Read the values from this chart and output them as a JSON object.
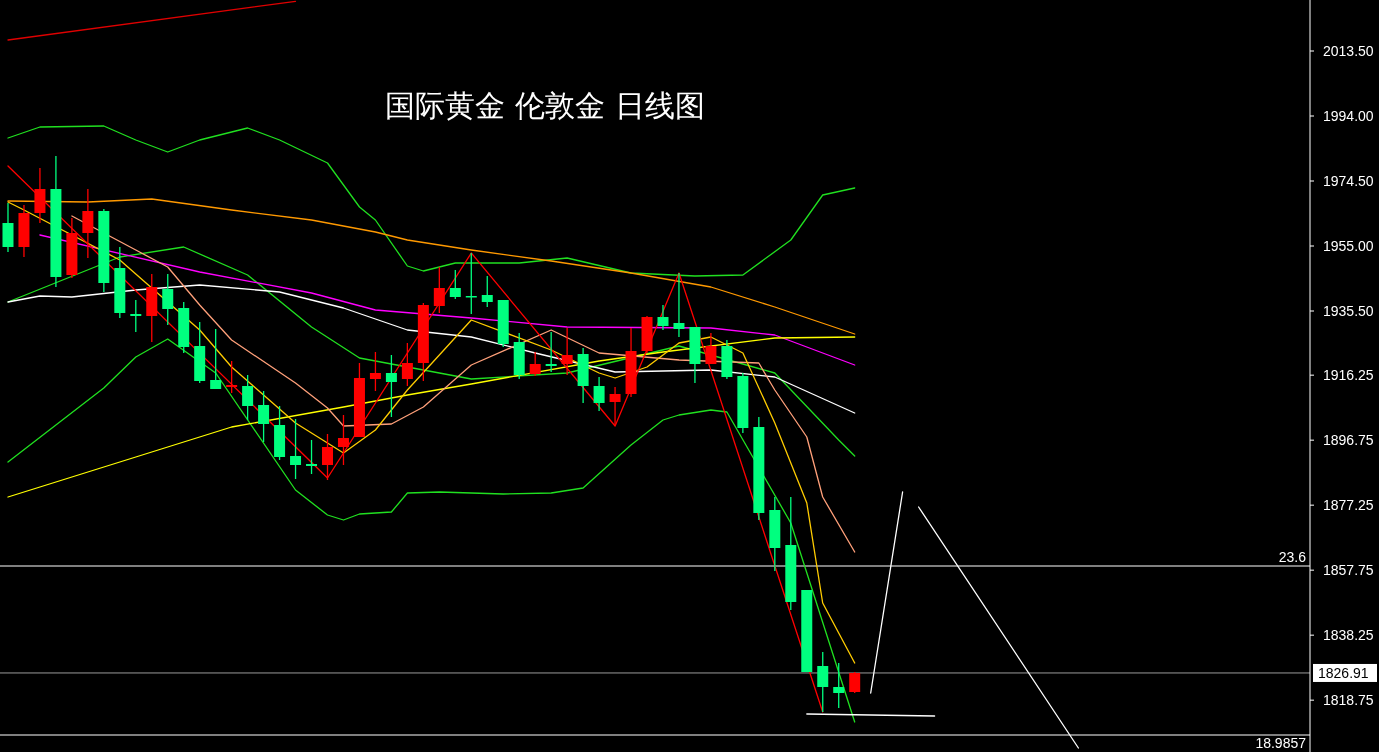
{
  "chart_data": {
    "type": "candlestick",
    "title": "国际黄金 伦敦金 日线图",
    "categories": [
      null,
      null,
      null,
      null,
      null,
      null,
      null,
      null,
      null,
      null,
      null,
      null,
      null,
      null,
      null,
      null,
      null,
      null,
      null,
      null,
      null,
      null,
      null,
      null,
      null,
      null,
      null,
      null,
      null,
      null,
      null,
      null,
      null,
      null,
      null,
      null,
      null,
      null,
      null,
      null,
      null,
      null,
      null,
      null,
      null,
      null,
      null,
      null,
      null,
      null,
      null,
      null,
      null,
      null,
      null,
      null,
      null,
      null,
      null,
      null,
      null,
      null,
      null,
      null,
      null,
      null,
      null,
      null,
      null,
      null,
      null,
      null,
      null,
      null,
      null,
      null,
      null,
      null,
      null,
      null,
      null,
      null
    ],
    "ohlc": [
      [
        1961.9,
        1967.9,
        1953.2,
        1954.7
      ],
      [
        1954.7,
        1967.3,
        1951.7,
        1964.9
      ],
      [
        1964.9,
        1978.4,
        1961.9,
        1972.1
      ],
      [
        1972.1,
        1982.0,
        1942.7,
        1945.7
      ],
      [
        1946.3,
        1963.4,
        1945.4,
        1958.9
      ],
      [
        1958.9,
        1972.1,
        1951.4,
        1965.5
      ],
      [
        1965.5,
        1966.1,
        1941.2,
        1943.9
      ],
      [
        1948.4,
        1954.7,
        1933.4,
        1934.9
      ],
      [
        1934.6,
        1938.8,
        1929.2,
        1934.0
      ],
      [
        1934.0,
        1946.6,
        1926.2,
        1942.7
      ],
      [
        1942.1,
        1946.6,
        1931.3,
        1936.1
      ],
      [
        1936.4,
        1938.2,
        1922.9,
        1924.7
      ],
      [
        1925.0,
        1932.2,
        1913.9,
        1914.5
      ],
      [
        1914.8,
        1930.1,
        1912.1,
        1912.1
      ],
      [
        1912.7,
        1920.5,
        1910.9,
        1913.3
      ],
      [
        1913.0,
        1916.3,
        1902.8,
        1907.0
      ],
      [
        1907.3,
        1911.5,
        1896.2,
        1901.6
      ],
      [
        1901.3,
        1907.0,
        1890.8,
        1891.7
      ],
      [
        1892.0,
        1903.1,
        1885.1,
        1889.3
      ],
      [
        1889.6,
        1896.8,
        1886.6,
        1889.0
      ],
      [
        1889.3,
        1898.6,
        1884.8,
        1894.7
      ],
      [
        1894.7,
        1904.3,
        1889.3,
        1897.4
      ],
      [
        1897.7,
        1919.9,
        1897.7,
        1915.4
      ],
      [
        1915.1,
        1923.2,
        1911.5,
        1916.9
      ],
      [
        1916.9,
        1922.3,
        1903.7,
        1914.2
      ],
      [
        1915.1,
        1925.9,
        1913.0,
        1919.9
      ],
      [
        1919.9,
        1937.9,
        1914.5,
        1937.3
      ],
      [
        1937.0,
        1948.7,
        1934.9,
        1942.4
      ],
      [
        1942.4,
        1947.8,
        1939.1,
        1939.7
      ],
      [
        1940.0,
        1952.9,
        1934.6,
        1939.7
      ],
      [
        1940.3,
        1946.0,
        1936.7,
        1938.2
      ],
      [
        1938.8,
        1938.8,
        1924.7,
        1925.6
      ],
      [
        1926.2,
        1928.9,
        1915.1,
        1916.3
      ],
      [
        1916.6,
        1923.2,
        1916.0,
        1919.6
      ],
      [
        1919.6,
        1929.2,
        1917.2,
        1919.0
      ],
      [
        1919.6,
        1930.4,
        1916.3,
        1922.3
      ],
      [
        1922.6,
        1924.4,
        1907.9,
        1913.0
      ],
      [
        1913.0,
        1915.7,
        1905.5,
        1907.9
      ],
      [
        1908.2,
        1912.7,
        1901.3,
        1910.6
      ],
      [
        1910.6,
        1930.4,
        1909.7,
        1923.5
      ],
      [
        1923.5,
        1934.0,
        1922.9,
        1933.7
      ],
      [
        1933.7,
        1937.3,
        1929.8,
        1931.0
      ],
      [
        1931.9,
        1946.9,
        1927.7,
        1930.1
      ],
      [
        1930.7,
        1930.7,
        1913.9,
        1919.6
      ],
      [
        1919.6,
        1928.9,
        1919.6,
        1925.0
      ],
      [
        1925.0,
        1926.8,
        1915.1,
        1915.7
      ],
      [
        1916.0,
        1916.9,
        1898.9,
        1900.4
      ],
      [
        1900.7,
        1903.7,
        1872.8,
        1874.9
      ],
      [
        1875.8,
        1879.7,
        1857.5,
        1864.4
      ],
      [
        1865.3,
        1879.7,
        1845.8,
        1848.2
      ],
      [
        1851.8,
        1851.8,
        1827.2,
        1827.2
      ],
      [
        1829.0,
        1833.2,
        1815.2,
        1822.7
      ],
      [
        1822.7,
        1829.9,
        1816.4,
        1820.9
      ],
      [
        1821.2,
        1827.2,
        1820.9,
        1826.9
      ],
      null,
      null,
      null,
      null,
      null,
      null,
      null,
      null,
      null,
      null,
      null,
      null,
      null,
      null,
      null,
      null,
      null,
      null,
      null,
      null,
      null,
      null,
      null,
      null,
      null,
      null,
      null,
      null
    ],
    "colors": [
      "#00ff7f",
      "#ff0000",
      "#ff0000",
      "#00ff7f",
      "#ff0000",
      "#ff0000",
      "#00ff7f",
      "#00ff7f",
      "#00ff7f",
      "#ff0000",
      "#00ff7f",
      "#00ff7f",
      "#00ff7f",
      "#00ff7f",
      "#ff0000",
      "#00ff7f",
      "#00ff7f",
      "#00ff7f",
      "#00ff7f",
      "#00ff7f",
      "#ff0000",
      "#ff0000",
      "#ff0000",
      "#ff0000",
      "#00ff7f",
      "#ff0000",
      "#ff0000",
      "#ff0000",
      "#00ff7f",
      "#00ff7f",
      "#00ff7f",
      "#00ff7f",
      "#00ff7f",
      "#ff0000",
      "#00ff7f",
      "#ff0000",
      "#00ff7f",
      "#00ff7f",
      "#ff0000",
      "#ff0000",
      "#ff0000",
      "#00ff7f",
      "#00ff7f",
      "#00ff7f",
      "#ff0000",
      "#00ff7f",
      "#00ff7f",
      "#00ff7f",
      "#00ff7f",
      "#00ff7f",
      "#00ff7f",
      "#00ff7f",
      "#00ff7f",
      "#ff0000",
      null,
      null,
      null,
      null,
      null,
      null,
      null,
      null,
      null,
      null,
      null,
      null,
      null,
      null,
      null,
      null,
      null,
      null,
      null,
      null,
      null,
      null,
      null,
      null,
      null,
      null,
      null,
      null
    ],
    "series": [
      {
        "type": "line",
        "color": "#20e020",
        "values": [
          1987.4,
          null,
          1990.7,
          null,
          null,
          null,
          1991.0,
          null,
          1986.8,
          null,
          1983.2,
          null,
          1986.8,
          null,
          null,
          1990.4,
          null,
          1986.8,
          null,
          null,
          1979.9,
          null,
          1966.7,
          1962.8,
          null,
          1949.0,
          1947.5,
          null,
          1949.9,
          null,
          null,
          null,
          1949.9,
          null,
          null,
          1951.4,
          null,
          null,
          null,
          1946.9,
          null,
          null,
          null,
          1946.0,
          null,
          null,
          1946.3,
          null,
          null,
          1956.8,
          null,
          1970.3,
          null,
          1972.4,
          null,
          null,
          null,
          null,
          null,
          null,
          null,
          null,
          null,
          null,
          null,
          null,
          null,
          null,
          null,
          null,
          null,
          null,
          null,
          null,
          null,
          null,
          null,
          null,
          null,
          null,
          null,
          null
        ]
      },
      {
        "type": "line",
        "color": "#20e020",
        "values": [
          1938.2,
          null,
          null,
          null,
          null,
          null,
          null,
          1951.7,
          null,
          null,
          null,
          1954.7,
          null,
          null,
          null,
          1946.3,
          null,
          null,
          null,
          1930.7,
          null,
          null,
          1921.4,
          null,
          null,
          null,
          null,
          null,
          null,
          1915.1,
          null,
          null,
          null,
          null,
          null,
          1916.9,
          null,
          null,
          null,
          null,
          null,
          null,
          1925.0,
          null,
          null,
          null,
          null,
          null,
          1916.9,
          null,
          null,
          null,
          1896.8,
          1892.0,
          null,
          null,
          null,
          null,
          null,
          null,
          null,
          null,
          null,
          null,
          null,
          null,
          null,
          null,
          null,
          null,
          null,
          null,
          null,
          null,
          null,
          null,
          null,
          null,
          null,
          null,
          null,
          null
        ]
      },
      {
        "type": "line",
        "color": "#20e020",
        "values": [
          1890.2,
          null,
          null,
          null,
          null,
          null,
          1912.4,
          null,
          1921.7,
          null,
          1927.1,
          null,
          null,
          1916.9,
          null,
          null,
          null,
          null,
          1881.8,
          null,
          1874.3,
          1872.8,
          1874.6,
          null,
          1875.2,
          1880.9,
          null,
          1881.2,
          null,
          null,
          null,
          1880.6,
          null,
          null,
          1880.9,
          null,
          1882.4,
          null,
          null,
          1895.3,
          null,
          1902.8,
          1904.3,
          null,
          1905.8,
          1905.2,
          null,
          null,
          null,
          1871.9,
          null,
          null,
          null,
          1812.2,
          null,
          null,
          null,
          null,
          null,
          null,
          null,
          null,
          null,
          null,
          null,
          null,
          null,
          null,
          null,
          null,
          null,
          null,
          null,
          null,
          null,
          null,
          null,
          null,
          null,
          null,
          null,
          null
        ]
      },
      {
        "type": "line",
        "color": "#ff9900",
        "values": [
          1968.5,
          null,
          null,
          null,
          null,
          1968.2,
          null,
          null,
          null,
          1969.1,
          null,
          null,
          null,
          null,
          1965.8,
          null,
          null,
          null,
          null,
          1962.8,
          null,
          null,
          null,
          1959.2,
          null,
          1956.8,
          null,
          null,
          null,
          1953.8,
          null,
          null,
          null,
          null,
          1950.5,
          null,
          null,
          null,
          null,
          1946.9,
          null,
          null,
          null,
          null,
          1942.7,
          null,
          null,
          null,
          1936.7,
          null,
          null,
          null,
          null,
          1928.6,
          null,
          null,
          null,
          null,
          null,
          null,
          null,
          null,
          null,
          null,
          null,
          null,
          null,
          null,
          null,
          null,
          null,
          null,
          null,
          null,
          null,
          null,
          null,
          null,
          null,
          null,
          null,
          null
        ]
      },
      {
        "type": "line",
        "color": "#ff00ff",
        "values": [
          null,
          null,
          1958.3,
          null,
          null,
          null,
          null,
          null,
          null,
          null,
          null,
          null,
          1947.2,
          null,
          null,
          null,
          null,
          null,
          null,
          1940.9,
          null,
          null,
          null,
          1935.8,
          null,
          null,
          null,
          null,
          null,
          1933.4,
          null,
          null,
          null,
          null,
          null,
          1930.7,
          null,
          null,
          null,
          null,
          null,
          null,
          null,
          null,
          1930.4,
          null,
          null,
          null,
          1928.3,
          null,
          null,
          null,
          null,
          1919.3,
          null,
          null,
          null,
          null,
          null,
          null,
          null,
          null,
          null,
          null,
          null,
          null,
          null,
          null,
          null,
          null,
          null,
          null,
          null,
          null,
          null,
          null,
          null,
          null,
          null,
          null,
          null,
          null
        ]
      },
      {
        "type": "line",
        "color": "#ffffff",
        "values": [
          1938.2,
          null,
          1940.0,
          null,
          1939.7,
          null,
          null,
          null,
          1941.8,
          null,
          null,
          null,
          1943.3,
          null,
          null,
          null,
          null,
          1941.2,
          null,
          null,
          null,
          1936.4,
          null,
          null,
          null,
          1929.8,
          null,
          null,
          null,
          1927.7,
          null,
          null,
          null,
          1922.9,
          null,
          null,
          null,
          null,
          1917.2,
          null,
          null,
          null,
          null,
          null,
          1917.8,
          null,
          null,
          null,
          1915.7,
          null,
          null,
          null,
          null,
          1904.9,
          null,
          null,
          null,
          null,
          null,
          null,
          null,
          null,
          null,
          null,
          null,
          null,
          null,
          null,
          null,
          null,
          null,
          null,
          null,
          null,
          null,
          null,
          null,
          null,
          null,
          null,
          null,
          null
        ]
      },
      {
        "type": "line",
        "color": "#ffff00",
        "values": [
          1879.7,
          null,
          null,
          null,
          null,
          null,
          null,
          null,
          1891.7,
          null,
          null,
          null,
          null,
          null,
          1900.7,
          null,
          null,
          null,
          null,
          null,
          null,
          1906.7,
          null,
          null,
          null,
          1910.3,
          null,
          null,
          null,
          1913.6,
          null,
          null,
          null,
          null,
          null,
          null,
          null,
          1920.5,
          null,
          null,
          null,
          1923.2,
          null,
          null,
          null,
          null,
          null,
          null,
          1927.4,
          null,
          null,
          null,
          null,
          1927.7,
          null,
          null,
          null,
          null,
          null,
          null,
          null,
          null,
          null,
          null,
          null,
          null,
          null,
          null,
          null,
          null,
          null,
          null,
          null,
          null,
          null,
          null,
          null,
          null,
          null,
          null,
          null,
          null
        ]
      },
      {
        "type": "line",
        "color": "#ffa07a",
        "values": [
          null,
          null,
          null,
          null,
          1964.0,
          null,
          null,
          null,
          1953.8,
          null,
          1948.7,
          null,
          1937.3,
          null,
          1926.8,
          null,
          null,
          null,
          1913.9,
          null,
          1906.4,
          1901.0,
          null,
          null,
          1901.6,
          null,
          1906.7,
          null,
          null,
          1919.3,
          null,
          null,
          null,
          null,
          1929.8,
          null,
          null,
          1922.9,
          null,
          null,
          null,
          null,
          1920.8,
          null,
          null,
          null,
          null,
          1919.9,
          1911.8,
          null,
          1897.7,
          1879.7,
          null,
          1863.2,
          null,
          null,
          null,
          null,
          null,
          null,
          null,
          null,
          null,
          null,
          null,
          null,
          null,
          null,
          null,
          null,
          null,
          null,
          null,
          null,
          null,
          null,
          null,
          null,
          null,
          null,
          null,
          null
        ]
      },
      {
        "type": "line",
        "color": "#ffcc00",
        "values": [
          1968.2,
          1965.8,
          null,
          null,
          null,
          null,
          null,
          1950.8,
          null,
          null,
          null,
          null,
          1929.8,
          null,
          1918.7,
          null,
          null,
          null,
          1901.9,
          null,
          null,
          1892.9,
          null,
          1899.8,
          null,
          1911.8,
          null,
          null,
          null,
          1932.8,
          null,
          null,
          null,
          null,
          1923.8,
          null,
          null,
          1916.9,
          1915.4,
          null,
          1918.7,
          null,
          1925.9,
          null,
          1927.7,
          null,
          1922.9,
          null,
          1901.9,
          null,
          1877.9,
          1847.9,
          null,
          1829.9,
          null,
          null,
          null,
          null,
          null,
          null,
          null,
          null,
          null,
          null,
          null,
          null,
          null,
          null,
          null,
          null,
          null,
          null,
          null,
          null,
          null,
          null,
          null,
          null,
          null,
          null,
          null,
          null
        ]
      },
      {
        "type": "line",
        "color": "#ff0000",
        "values": [
          1979.0,
          null,
          null,
          null,
          null,
          null,
          null,
          null,
          null,
          null,
          null,
          null,
          null,
          null,
          null,
          null,
          null,
          null,
          null,
          null,
          1885.4,
          null,
          null,
          null,
          null,
          null,
          null,
          null,
          null,
          1952.9,
          null,
          null,
          null,
          null,
          null,
          null,
          null,
          null,
          1901.0,
          null,
          null,
          null,
          1946.9,
          null,
          null,
          null,
          null,
          null,
          null,
          null,
          null,
          1815.2,
          null,
          null,
          null,
          null,
          null,
          null,
          null,
          null,
          null,
          null,
          null,
          null,
          null,
          null,
          null,
          null,
          null,
          null,
          null,
          null,
          null,
          null,
          null,
          null,
          null,
          null,
          null,
          null,
          null,
          null
        ]
      },
      {
        "type": "line",
        "color": "#e00000",
        "values": [
          2016.8,
          null,
          null,
          null,
          null,
          null,
          null,
          null,
          null,
          null,
          null,
          null,
          null,
          null,
          null,
          null,
          null,
          null,
          2028.4,
          null,
          null,
          null,
          null,
          null,
          null,
          null,
          null,
          null,
          null,
          null,
          null,
          null,
          null,
          null,
          null,
          null,
          null,
          null,
          null,
          null,
          null,
          null,
          null,
          null,
          null,
          null,
          null,
          null,
          null,
          null,
          null,
          null,
          null,
          null,
          null,
          null,
          null,
          null,
          null,
          null,
          null,
          null,
          null,
          null,
          null,
          null,
          null,
          null,
          null,
          null,
          null,
          null,
          null,
          null,
          null,
          null,
          null,
          null,
          null,
          null,
          null,
          null
        ]
      },
      {
        "type": "line",
        "color": "#ffffff",
        "values": [
          null,
          null,
          null,
          null,
          null,
          null,
          null,
          null,
          null,
          null,
          null,
          null,
          null,
          null,
          null,
          null,
          null,
          null,
          null,
          null,
          null,
          null,
          null,
          null,
          null,
          null,
          null,
          null,
          null,
          null,
          null,
          null,
          null,
          null,
          null,
          null,
          null,
          null,
          null,
          null,
          null,
          null,
          null,
          null,
          null,
          null,
          null,
          null,
          null,
          null,
          null,
          null,
          null,
          null,
          1820.9,
          null,
          1881.2,
          null,
          null,
          null,
          null,
          null,
          null,
          null,
          null,
          null,
          null,
          null,
          null,
          null,
          null,
          null,
          null,
          null,
          null,
          null,
          null,
          null,
          null,
          null,
          null,
          null
        ]
      },
      {
        "type": "line",
        "color": "#ffffff",
        "values": [
          null,
          null,
          null,
          null,
          null,
          null,
          null,
          null,
          null,
          null,
          null,
          null,
          null,
          null,
          null,
          null,
          null,
          null,
          null,
          null,
          null,
          null,
          null,
          null,
          null,
          null,
          null,
          null,
          null,
          null,
          null,
          null,
          null,
          null,
          null,
          null,
          null,
          null,
          null,
          null,
          null,
          null,
          null,
          null,
          null,
          null,
          null,
          null,
          null,
          null,
          null,
          null,
          null,
          null,
          null,
          null,
          null,
          1876.7,
          null,
          null,
          null,
          null,
          null,
          null,
          null,
          null,
          null,
          1804.4,
          null,
          null,
          null,
          null,
          null,
          null,
          null,
          null,
          null,
          null,
          null,
          null,
          null,
          null
        ]
      },
      {
        "type": "line",
        "color": "#ffffff",
        "values": [
          null,
          null,
          null,
          null,
          null,
          null,
          null,
          null,
          null,
          null,
          null,
          null,
          null,
          null,
          null,
          null,
          null,
          null,
          null,
          null,
          null,
          null,
          null,
          null,
          null,
          null,
          null,
          null,
          null,
          null,
          null,
          null,
          null,
          null,
          null,
          null,
          null,
          null,
          null,
          null,
          null,
          null,
          null,
          null,
          null,
          null,
          null,
          null,
          null,
          null,
          1814.6,
          null,
          null,
          null,
          null,
          null,
          null,
          null,
          1814.0,
          null,
          null,
          null,
          null,
          null,
          null,
          null,
          null,
          null,
          null,
          null,
          null,
          null,
          null,
          null,
          null,
          null,
          null,
          null,
          null,
          null,
          null,
          null
        ]
      }
    ],
    "ref_lines": [
      {
        "axis": "y",
        "value": 1859.0,
        "color": "#ffffff"
      },
      {
        "axis": "y",
        "value": 1826.91,
        "label": "1826.91",
        "color": "#9a9a9a"
      },
      {
        "axis": "y",
        "value": 1808.3,
        "color": "#ffffff"
      }
    ],
    "annotations": [
      {
        "text": "23.6",
        "y": 1859.0
      },
      "18.9857"
    ],
    "ylim": [
      1803.2,
      2028.8
    ],
    "yticks": [
      {
        "value": 2013.5,
        "label": "2013.50"
      },
      {
        "value": 1994,
        "label": "1994.00"
      },
      {
        "value": 1974.5,
        "label": "1974.50"
      },
      {
        "value": 1955,
        "label": "1955.00"
      },
      {
        "value": 1935.5,
        "label": "1935.50"
      },
      {
        "value": 1916.25,
        "label": "1916.25"
      },
      {
        "value": 1896.75,
        "label": "1896.75"
      },
      {
        "value": 1877.25,
        "label": "1877.25"
      },
      {
        "value": 1857.75,
        "label": "1857.75"
      },
      {
        "value": 1838.25,
        "label": "1838.25"
      },
      {
        "value": 1818.75,
        "label": "1818.75"
      }
    ],
    "tick_labels": "y",
    "grid": false
  }
}
